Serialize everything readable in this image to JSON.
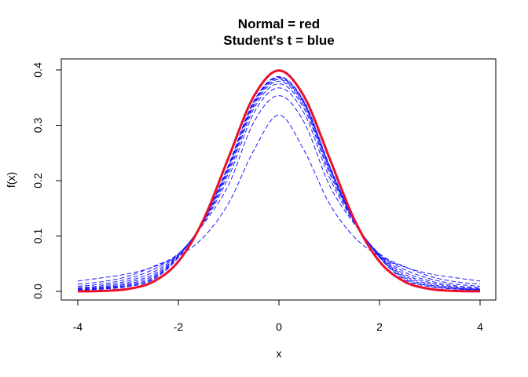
{
  "chart_data": {
    "type": "line",
    "title": "Normal = red",
    "subtitle": "Student's t = blue",
    "xlabel": "x",
    "ylabel": "f(x)",
    "xlim": [
      -4,
      4
    ],
    "ylim": [
      0,
      0.4
    ],
    "xticks": [
      -4,
      -2,
      0,
      2,
      4
    ],
    "yticks": [
      0.0,
      0.1,
      0.2,
      0.3,
      0.4
    ],
    "xtick_labels": [
      "-4",
      "-2",
      "0",
      "2",
      "4"
    ],
    "ytick_labels": [
      "0.0",
      "0.1",
      "0.2",
      "0.3",
      "0.4"
    ],
    "grid": false,
    "x": [
      -4,
      -3.5,
      -3,
      -2.5,
      -2,
      -1.5,
      -1,
      -0.5,
      0,
      0.5,
      1,
      1.5,
      2,
      2.5,
      3,
      3.5,
      4
    ],
    "normal": {
      "color": "#e8102a",
      "values": [
        0.0001,
        0.0009,
        0.0044,
        0.0175,
        0.054,
        0.1295,
        0.242,
        0.3521,
        0.3989,
        0.3521,
        0.242,
        0.1295,
        0.054,
        0.0175,
        0.0044,
        0.0009,
        0.0001
      ]
    },
    "t_series": {
      "color": "#1a1aff",
      "dashed": true,
      "values": [
        [
          0.0187,
          0.0248,
          0.0318,
          0.0439,
          0.0637,
          0.0979,
          0.1592,
          0.2546,
          0.3183,
          0.2546,
          0.1592,
          0.0979,
          0.0637,
          0.0439,
          0.0318,
          0.0248,
          0.0187
        ],
        [
          0.0131,
          0.0176,
          0.0273,
          0.0449,
          0.068,
          0.1219,
          0.1925,
          0.3055,
          0.3536,
          0.3055,
          0.1925,
          0.1219,
          0.068,
          0.0449,
          0.0273,
          0.0176,
          0.0131
        ],
        [
          0.0092,
          0.0134,
          0.0229,
          0.0396,
          0.0675,
          0.1239,
          0.2067,
          0.322,
          0.3676,
          0.322,
          0.2067,
          0.1239,
          0.0675,
          0.0396,
          0.0229,
          0.0134,
          0.0092
        ],
        [
          0.0067,
          0.0104,
          0.0191,
          0.0348,
          0.0664,
          0.1251,
          0.2147,
          0.3302,
          0.375,
          0.3302,
          0.2147,
          0.1251,
          0.0664,
          0.0348,
          0.0191,
          0.0104,
          0.0067
        ],
        [
          0.0051,
          0.0083,
          0.016,
          0.0309,
          0.0651,
          0.1262,
          0.2197,
          0.335,
          0.3796,
          0.335,
          0.2197,
          0.1262,
          0.0651,
          0.0309,
          0.016,
          0.0083,
          0.0051
        ],
        [
          0.004,
          0.0068,
          0.0135,
          0.0278,
          0.064,
          0.127,
          0.2231,
          0.3382,
          0.3827,
          0.3382,
          0.2231,
          0.127,
          0.064,
          0.0278,
          0.0135,
          0.0068,
          0.004
        ],
        [
          0.0032,
          0.0057,
          0.0115,
          0.0252,
          0.063,
          0.1276,
          0.2256,
          0.3405,
          0.385,
          0.3405,
          0.2256,
          0.1276,
          0.063,
          0.0252,
          0.0115,
          0.0057,
          0.0032
        ],
        [
          0.0026,
          0.0048,
          0.0099,
          0.023,
          0.0621,
          0.1281,
          0.2275,
          0.3421,
          0.3867,
          0.3421,
          0.2275,
          0.1281,
          0.0621,
          0.023,
          0.0099,
          0.0048,
          0.0026
        ],
        [
          0.0021,
          0.0041,
          0.0086,
          0.0212,
          0.0613,
          0.1285,
          0.229,
          0.3434,
          0.388,
          0.3434,
          0.229,
          0.1285,
          0.0613,
          0.0212,
          0.0086,
          0.0041,
          0.0021
        ]
      ]
    }
  }
}
